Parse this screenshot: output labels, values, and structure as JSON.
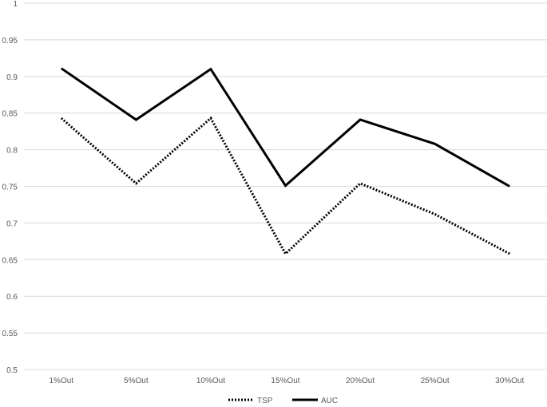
{
  "chart_data": {
    "type": "line",
    "title": "",
    "xlabel": "",
    "ylabel": "",
    "categories": [
      "1%Out",
      "5%Out",
      "10%Out",
      "15%Out",
      "20%Out",
      "25%Out",
      "30%Out"
    ],
    "ylim": [
      0.5,
      1
    ],
    "yticks": [
      "0.5",
      "0.55",
      "0.6",
      "0.65",
      "0.7",
      "0.75",
      "0.8",
      "0.85",
      "0.9",
      "0.95",
      "1"
    ],
    "grid": true,
    "legend_position": "bottom",
    "series": [
      {
        "name": "TSP",
        "style": "dotted",
        "color": "#000000",
        "values": [
          0.843,
          0.754,
          0.843,
          0.658,
          0.754,
          0.712,
          0.658
        ]
      },
      {
        "name": "AUC",
        "style": "solid",
        "color": "#000000",
        "values": [
          0.911,
          0.841,
          0.91,
          0.751,
          0.841,
          0.808,
          0.75
        ]
      }
    ]
  }
}
